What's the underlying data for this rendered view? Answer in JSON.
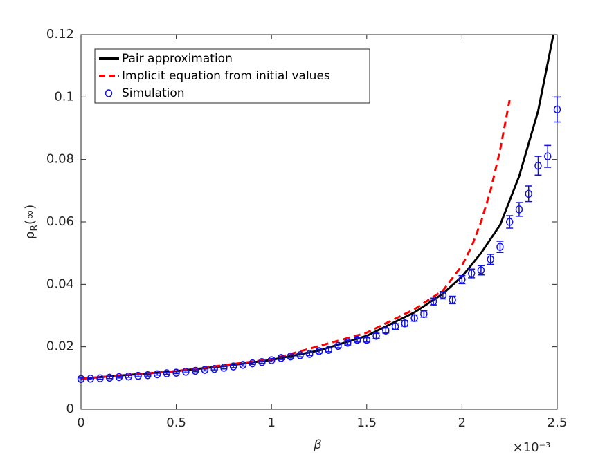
{
  "chart_data": {
    "type": "line",
    "xlabel": "β",
    "ylabel": [
      "ρ",
      "R",
      "(∞)"
    ],
    "x_multiplier": "×10⁻³",
    "xlim": [
      0,
      2.5
    ],
    "xticks": [
      0,
      0.5,
      1,
      1.5,
      2,
      2.5
    ],
    "ylim": [
      0,
      0.12
    ],
    "yticks": [
      0,
      0.02,
      0.04,
      0.06,
      0.08,
      0.1,
      0.12
    ],
    "legend": "top-left",
    "series": [
      {
        "name": "Pair approximation",
        "color": "#000000",
        "style": "solid",
        "x": [
          0,
          0.25,
          0.5,
          0.75,
          1.0,
          1.25,
          1.5,
          1.75,
          1.9,
          2.0,
          2.1,
          2.2,
          2.3,
          2.4,
          2.48
        ],
        "values": [
          0.0098,
          0.011,
          0.0122,
          0.0138,
          0.0158,
          0.0188,
          0.0235,
          0.031,
          0.037,
          0.0425,
          0.05,
          0.059,
          0.0746,
          0.0956,
          0.12
        ]
      },
      {
        "name": "Implicit equation from initial values",
        "color": "#ff0000",
        "style": "dashed",
        "x": [
          0,
          0.5,
          1.0,
          1.5,
          1.75,
          1.9,
          2.0,
          2.05,
          2.1,
          2.15,
          2.2,
          2.25
        ],
        "values": [
          0.0098,
          0.0122,
          0.016,
          0.0245,
          0.032,
          0.038,
          0.046,
          0.052,
          0.06,
          0.07,
          0.083,
          0.099
        ]
      },
      {
        "name": "Simulation",
        "color": "#1010e0",
        "style": "errorbar",
        "x": [
          0,
          0.05,
          0.1,
          0.15,
          0.2,
          0.25,
          0.3,
          0.35,
          0.4,
          0.45,
          0.5,
          0.55,
          0.6,
          0.65,
          0.7,
          0.75,
          0.8,
          0.85,
          0.9,
          0.95,
          1.0,
          1.05,
          1.1,
          1.15,
          1.2,
          1.25,
          1.3,
          1.35,
          1.4,
          1.45,
          1.5,
          1.55,
          1.6,
          1.65,
          1.7,
          1.75,
          1.8,
          1.85,
          1.9,
          1.95,
          2.0,
          2.05,
          2.1,
          2.15,
          2.2,
          2.25,
          2.3,
          2.35,
          2.4,
          2.45,
          2.5
        ],
        "values": [
          0.0097,
          0.0098,
          0.0099,
          0.0101,
          0.0103,
          0.0105,
          0.0107,
          0.0109,
          0.0112,
          0.0115,
          0.0117,
          0.012,
          0.0123,
          0.0126,
          0.0129,
          0.0133,
          0.0137,
          0.0142,
          0.0147,
          0.0151,
          0.0157,
          0.0164,
          0.0169,
          0.0173,
          0.0177,
          0.0186,
          0.019,
          0.0203,
          0.0213,
          0.0222,
          0.0222,
          0.0235,
          0.0252,
          0.0265,
          0.0275,
          0.0292,
          0.0305,
          0.0345,
          0.0365,
          0.035,
          0.0415,
          0.0435,
          0.0445,
          0.048,
          0.052,
          0.06,
          0.064,
          0.069,
          0.078,
          0.081,
          0.096
        ],
        "errors": [
          0.0003,
          0.0003,
          0.0003,
          0.0003,
          0.0003,
          0.0003,
          0.0003,
          0.0003,
          0.0003,
          0.0003,
          0.0003,
          0.0003,
          0.0003,
          0.0003,
          0.0003,
          0.0004,
          0.0004,
          0.0004,
          0.0004,
          0.0004,
          0.0005,
          0.0005,
          0.0005,
          0.0005,
          0.0005,
          0.0006,
          0.0006,
          0.0006,
          0.0007,
          0.0007,
          0.0007,
          0.0008,
          0.0008,
          0.0009,
          0.0009,
          0.001,
          0.001,
          0.0011,
          0.0012,
          0.0012,
          0.0013,
          0.0014,
          0.0015,
          0.0016,
          0.0018,
          0.002,
          0.0022,
          0.0025,
          0.003,
          0.0035,
          0.004
        ]
      }
    ]
  }
}
